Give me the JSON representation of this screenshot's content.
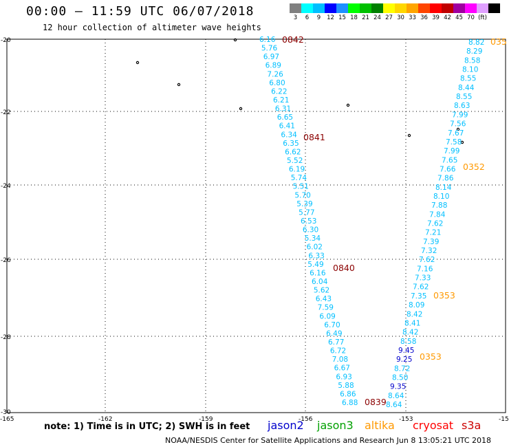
{
  "title": "00:00 – 11:59 UTC 06/07/2018",
  "subtitle": "12 hour collection of altimeter wave heights",
  "color_scale": {
    "colors": [
      "#808080",
      "#00ffff",
      "#00bfff",
      "#0000ff",
      "#1e90ff",
      "#00ff00",
      "#00c000",
      "#008000",
      "#ffff00",
      "#ffd700",
      "#ffa500",
      "#ff4500",
      "#ff0000",
      "#c00000",
      "#a000a0",
      "#ff00ff",
      "#e0a0ff",
      "#000000"
    ],
    "labels": [
      "3",
      "6",
      "9",
      "12",
      "15",
      "18",
      "21",
      "24",
      "27",
      "30",
      "33",
      "36",
      "39",
      "42",
      "45",
      "70",
      "(ft)"
    ]
  },
  "unit_label": "(ft)",
  "lat_labels": [
    "-20",
    "-22",
    "-24",
    "-26",
    "-28",
    "-30"
  ],
  "lon_labels": [
    "-165",
    "-162",
    "-159",
    "-156",
    "-153",
    "-15"
  ],
  "note": "note: 1) Time is in UTC; 2) SWH is in feet",
  "legend": [
    {
      "name": "jason2",
      "color": "#0000cc"
    },
    {
      "name": "jason3",
      "color": "#00a000"
    },
    {
      "name": "altika",
      "color": "#ff9900"
    },
    {
      "name": "cryosat",
      "color": "#ff0000"
    },
    {
      "name": "s3a",
      "color": "#cc0000"
    }
  ],
  "credit": "NOAA/NESDIS Center for Satellite Applications and Research   Jun  8 13:05:21 UTC 2018",
  "time_labels": [
    {
      "text": "0842",
      "color": "#8b0000"
    },
    {
      "text": "0841",
      "color": "#8b0000"
    },
    {
      "text": "0840",
      "color": "#8b0000"
    },
    {
      "text": "0839",
      "color": "#8b0000"
    },
    {
      "text": "035",
      "color": "#ff9900"
    },
    {
      "text": "0352",
      "color": "#ff9900"
    },
    {
      "text": "0353",
      "color": "#ff9900"
    },
    {
      "text": "0353",
      "color": "#ff9900"
    }
  ],
  "track_west": {
    "color": "#00bfff",
    "values": [
      "6.16",
      "5.76",
      "6.97",
      "6.89",
      "7.26",
      "6.80",
      "6.22",
      "6.21",
      "6.31",
      "6.65",
      "6.41",
      "6.34",
      "6.35",
      "6.62",
      "5.52",
      "6.19",
      "5.74",
      "5.51",
      "5.70",
      "5.39",
      "5.77",
      "6.53",
      "6.30",
      "5.34",
      "6.02",
      "6.33",
      "5.49",
      "6.16",
      "6.04",
      "5.62",
      "6.43",
      "7.59",
      "6.09",
      "6.70",
      "6.49",
      "6.77",
      "6.72",
      "7.08",
      "6.67",
      "6.93",
      "5.88",
      "6.86",
      "6.88"
    ]
  },
  "track_east": {
    "color": "#00bfff",
    "values": [
      "8.82",
      "8.29",
      "8.58",
      "8.10",
      "8.55",
      "8.44",
      "8.55",
      "8.63",
      "7.99",
      "7.56",
      "7.67",
      "7.58",
      "7.99",
      "7.65",
      "7.66",
      "7.86",
      "8.14",
      "8.10",
      "7.88",
      "7.84",
      "7.62",
      "7.21",
      "7.39",
      "7.32",
      "7.62",
      "7.16",
      "7.33",
      "7.62",
      "7.35",
      "8.09",
      "8.42",
      "8.41",
      "8.42",
      "8.58",
      "9.45",
      "9.25",
      "8.72",
      "8.50",
      "9.35",
      "8.64",
      "8.64"
    ]
  }
}
